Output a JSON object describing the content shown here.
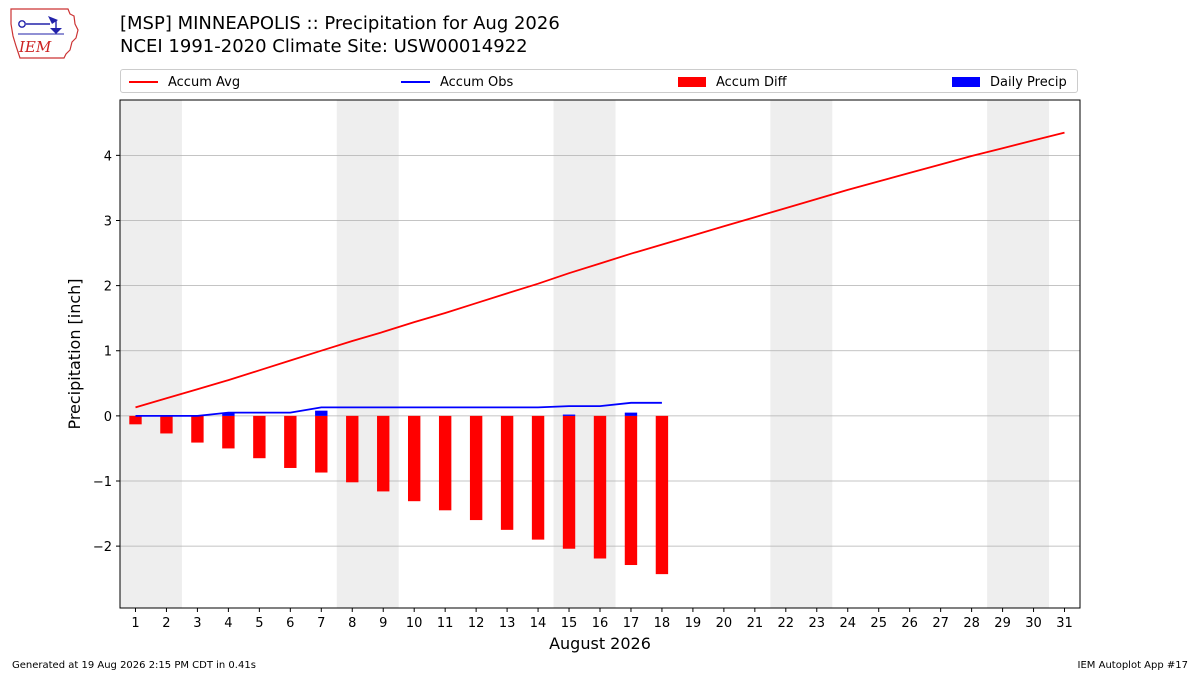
{
  "logo": {
    "text": "IEM",
    "icon": "iem-iowa-logo-icon"
  },
  "title": {
    "line1": "[MSP] MINNEAPOLIS :: Precipitation for Aug 2026",
    "line2": "NCEI 1991-2020 Climate Site: USW00014922"
  },
  "legend": {
    "placement": "top, above plot",
    "items": [
      {
        "label": "Accum Avg",
        "kind": "line",
        "color": "#ff0000"
      },
      {
        "label": "Accum Obs",
        "kind": "line",
        "color": "#0000ff"
      },
      {
        "label": "Accum Diff",
        "kind": "bar",
        "color": "#ff0000"
      },
      {
        "label": "Daily Precip",
        "kind": "bar",
        "color": "#0000ff"
      }
    ]
  },
  "chart_data": {
    "type": "bar",
    "xlabel": "August 2026",
    "ylabel": "Precipitation [inch]",
    "xlim": [
      0.5,
      31.5
    ],
    "ylim": [
      -2.95,
      4.85
    ],
    "x_ticks": [
      1,
      2,
      3,
      4,
      5,
      6,
      7,
      8,
      9,
      10,
      11,
      12,
      13,
      14,
      15,
      16,
      17,
      18,
      19,
      20,
      21,
      22,
      23,
      24,
      25,
      26,
      27,
      28,
      29,
      30,
      31
    ],
    "y_ticks": [
      -2,
      -1,
      0,
      1,
      2,
      3,
      4
    ],
    "y_tick_labels": [
      "−2",
      "−1",
      "0",
      "1",
      "2",
      "3",
      "4"
    ],
    "grid": "horizontal",
    "weekend_shading": [
      [
        0.5,
        2.5
      ],
      [
        7.5,
        9.5
      ],
      [
        14.5,
        16.5
      ],
      [
        21.5,
        23.5
      ],
      [
        28.5,
        30.5
      ]
    ],
    "shading_color": "#eeeeee",
    "series": [
      {
        "name": "Accum Avg",
        "type": "line",
        "color": "#ff0000",
        "x": [
          1,
          2,
          3,
          4,
          5,
          6,
          7,
          8,
          9,
          10,
          11,
          12,
          13,
          14,
          15,
          16,
          17,
          18,
          19,
          20,
          21,
          22,
          23,
          24,
          25,
          26,
          27,
          28,
          29,
          30,
          31
        ],
        "values": [
          0.13,
          0.27,
          0.41,
          0.55,
          0.7,
          0.85,
          1.0,
          1.15,
          1.29,
          1.44,
          1.58,
          1.73,
          1.88,
          2.03,
          2.19,
          2.34,
          2.49,
          2.63,
          2.77,
          2.91,
          3.05,
          3.19,
          3.33,
          3.47,
          3.6,
          3.73,
          3.86,
          3.99,
          4.11,
          4.23,
          4.35
        ]
      },
      {
        "name": "Accum Obs",
        "type": "line",
        "color": "#0000ff",
        "x": [
          1,
          2,
          3,
          4,
          5,
          6,
          7,
          8,
          9,
          10,
          11,
          12,
          13,
          14,
          15,
          16,
          17,
          18
        ],
        "values": [
          0.0,
          0.0,
          0.0,
          0.05,
          0.05,
          0.05,
          0.13,
          0.13,
          0.13,
          0.13,
          0.13,
          0.13,
          0.13,
          0.13,
          0.15,
          0.15,
          0.2,
          0.2
        ]
      },
      {
        "name": "Accum Diff",
        "type": "bar",
        "color": "#ff0000",
        "x": [
          1,
          2,
          3,
          4,
          5,
          6,
          7,
          8,
          9,
          10,
          11,
          12,
          13,
          14,
          15,
          16,
          17,
          18
        ],
        "values": [
          -0.13,
          -0.27,
          -0.41,
          -0.5,
          -0.65,
          -0.8,
          -0.87,
          -1.02,
          -1.16,
          -1.31,
          -1.45,
          -1.6,
          -1.75,
          -1.9,
          -2.04,
          -2.19,
          -2.29,
          -2.43
        ]
      },
      {
        "name": "Daily Precip",
        "type": "bar",
        "color": "#0000ff",
        "x": [
          1,
          2,
          3,
          4,
          5,
          6,
          7,
          8,
          9,
          10,
          11,
          12,
          13,
          14,
          15,
          16,
          17,
          18
        ],
        "values": [
          0,
          0,
          0,
          0.05,
          0,
          0,
          0.08,
          0,
          0,
          0,
          0,
          0,
          0,
          0,
          0.02,
          0,
          0.05,
          0
        ]
      }
    ]
  },
  "footer": {
    "generated": "Generated at 19 Aug 2026 2:15 PM CDT in 0.41s",
    "app": "IEM Autoplot App #17"
  }
}
